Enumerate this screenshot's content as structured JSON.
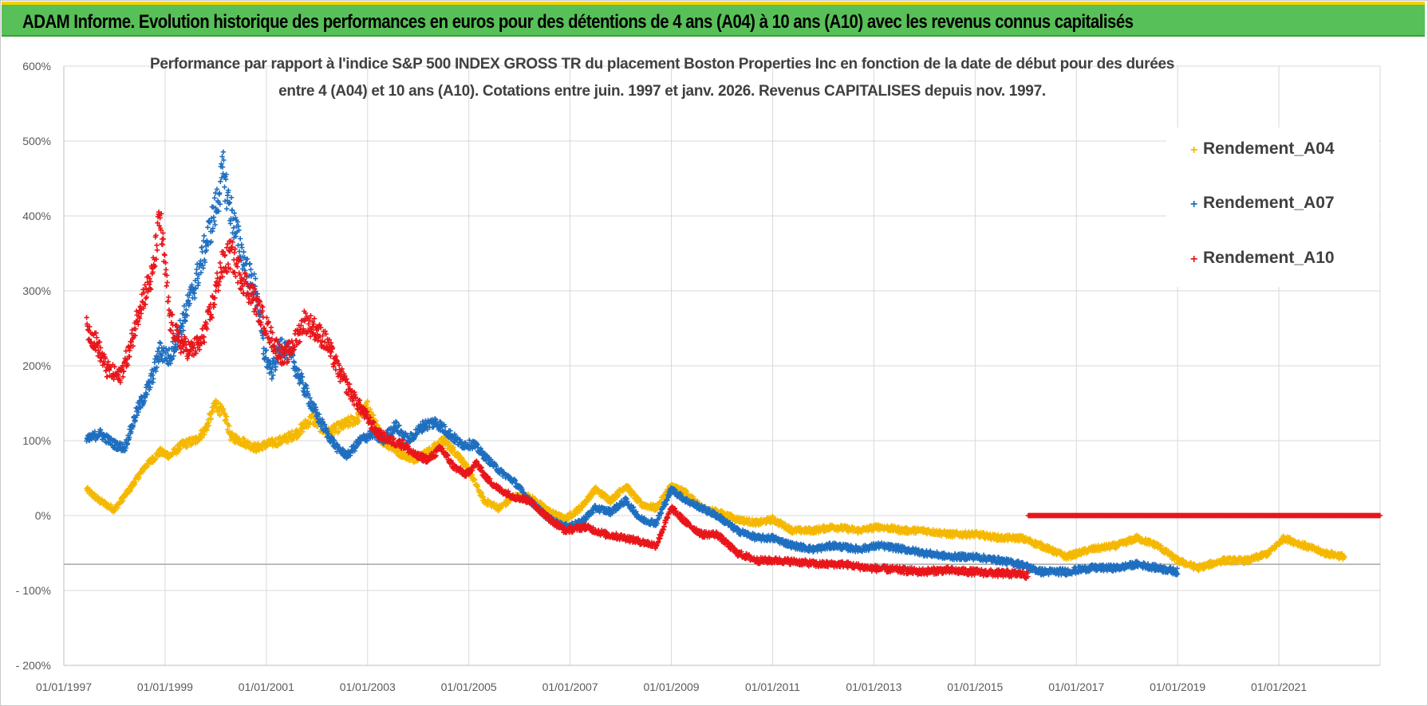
{
  "header": {
    "banner_title": "ADAM Informe. Evolution historique des performances en euros pour des détentions de 4 ans (A04) à 10 ans (A10) avec les revenus connus capitalisés"
  },
  "chart_data": {
    "type": "scatter",
    "title_line1": "Performance par rapport à l'indice S&P 500 INDEX GROSS TR  du placement Boston Properties Inc en fonction de la date de début pour des durées",
    "title_line2": "entre 4 (A04) et 10 ans (A10). Cotations entre juin. 1997 et janv. 2026. Revenus CAPITALISES depuis nov. 1997.",
    "xlabel": "",
    "ylabel": "",
    "x_ticks": [
      "01/01/1997",
      "01/01/1999",
      "01/01/2001",
      "01/01/2003",
      "01/01/2005",
      "01/01/2007",
      "01/01/2009",
      "01/01/2011",
      "01/01/2013",
      "01/01/2015",
      "01/01/2017",
      "01/01/2019",
      "01/01/2021"
    ],
    "y_ticks": [
      "600%",
      "500%",
      "400%",
      "300%",
      "200%",
      "100%",
      "0%",
      "- 100%",
      "- 200%"
    ],
    "xlim": [
      1997.0,
      2023.0
    ],
    "ylim": [
      -200,
      600
    ],
    "grid": true,
    "reference_line_y": -65,
    "legend_position": "top-right",
    "marker": "+",
    "series": [
      {
        "name": "Rendement_A04",
        "color": "#F5B800",
        "points": [
          [
            1997.45,
            35
          ],
          [
            1997.7,
            20
          ],
          [
            1998.0,
            8
          ],
          [
            1998.3,
            35
          ],
          [
            1998.6,
            65
          ],
          [
            1998.9,
            85
          ],
          [
            1999.1,
            80
          ],
          [
            1999.35,
            95
          ],
          [
            1999.6,
            100
          ],
          [
            1999.8,
            115
          ],
          [
            2000.0,
            150
          ],
          [
            2000.2,
            130
          ],
          [
            2000.3,
            105
          ],
          [
            2000.5,
            100
          ],
          [
            2000.8,
            90
          ],
          [
            2001.0,
            95
          ],
          [
            2001.3,
            100
          ],
          [
            2001.6,
            110
          ],
          [
            2001.9,
            130
          ],
          [
            2002.2,
            110
          ],
          [
            2002.5,
            120
          ],
          [
            2002.8,
            130
          ],
          [
            2003.0,
            145
          ],
          [
            2003.3,
            100
          ],
          [
            2003.6,
            85
          ],
          [
            2003.9,
            75
          ],
          [
            2004.2,
            85
          ],
          [
            2004.5,
            100
          ],
          [
            2004.8,
            80
          ],
          [
            2005.0,
            60
          ],
          [
            2005.3,
            20
          ],
          [
            2005.6,
            10
          ],
          [
            2005.9,
            25
          ],
          [
            2006.2,
            25
          ],
          [
            2006.6,
            5
          ],
          [
            2006.9,
            -5
          ],
          [
            2007.2,
            10
          ],
          [
            2007.5,
            35
          ],
          [
            2007.8,
            20
          ],
          [
            2008.1,
            40
          ],
          [
            2008.4,
            15
          ],
          [
            2008.7,
            10
          ],
          [
            2009.0,
            40
          ],
          [
            2009.3,
            30
          ],
          [
            2009.6,
            10
          ],
          [
            2009.9,
            5
          ],
          [
            2010.3,
            -5
          ],
          [
            2010.7,
            -10
          ],
          [
            2011.0,
            -5
          ],
          [
            2011.4,
            -20
          ],
          [
            2011.8,
            -20
          ],
          [
            2012.2,
            -15
          ],
          [
            2012.7,
            -20
          ],
          [
            2013.1,
            -15
          ],
          [
            2013.6,
            -20
          ],
          [
            2014.0,
            -20
          ],
          [
            2014.5,
            -25
          ],
          [
            2015.0,
            -25
          ],
          [
            2015.5,
            -30
          ],
          [
            2015.9,
            -30
          ],
          [
            2016.3,
            -40
          ],
          [
            2016.8,
            -55
          ],
          [
            2017.3,
            -45
          ],
          [
            2017.8,
            -40
          ],
          [
            2018.2,
            -30
          ],
          [
            2018.6,
            -40
          ],
          [
            2019.0,
            -60
          ],
          [
            2019.4,
            -70
          ],
          [
            2019.9,
            -60
          ],
          [
            2020.4,
            -60
          ],
          [
            2020.8,
            -50
          ],
          [
            2021.1,
            -30
          ],
          [
            2021.5,
            -40
          ],
          [
            2021.9,
            -50
          ],
          [
            2022.3,
            -55
          ]
        ]
      },
      {
        "name": "Rendement_A07",
        "color": "#1F6FC0",
        "points": [
          [
            1997.45,
            100
          ],
          [
            1997.7,
            110
          ],
          [
            1998.0,
            95
          ],
          [
            1998.2,
            90
          ],
          [
            1998.45,
            140
          ],
          [
            1998.7,
            175
          ],
          [
            1998.9,
            220
          ],
          [
            1999.1,
            210
          ],
          [
            1999.35,
            260
          ],
          [
            1999.6,
            310
          ],
          [
            1999.8,
            360
          ],
          [
            2000.0,
            410
          ],
          [
            2000.15,
            460
          ],
          [
            2000.25,
            420
          ],
          [
            2000.4,
            380
          ],
          [
            2000.6,
            330
          ],
          [
            2000.8,
            300
          ],
          [
            2000.95,
            220
          ],
          [
            2001.1,
            190
          ],
          [
            2001.3,
            230
          ],
          [
            2001.5,
            210
          ],
          [
            2001.75,
            170
          ],
          [
            2001.95,
            140
          ],
          [
            2002.2,
            110
          ],
          [
            2002.4,
            90
          ],
          [
            2002.6,
            80
          ],
          [
            2002.85,
            100
          ],
          [
            2003.1,
            110
          ],
          [
            2003.3,
            100
          ],
          [
            2003.55,
            120
          ],
          [
            2003.8,
            100
          ],
          [
            2004.1,
            120
          ],
          [
            2004.35,
            125
          ],
          [
            2004.6,
            110
          ],
          [
            2004.85,
            95
          ],
          [
            2005.1,
            95
          ],
          [
            2005.3,
            80
          ],
          [
            2005.6,
            60
          ],
          [
            2005.9,
            45
          ],
          [
            2006.2,
            20
          ],
          [
            2006.6,
            -5
          ],
          [
            2006.9,
            -15
          ],
          [
            2007.2,
            -10
          ],
          [
            2007.5,
            10
          ],
          [
            2007.8,
            5
          ],
          [
            2008.1,
            20
          ],
          [
            2008.4,
            -5
          ],
          [
            2008.7,
            -10
          ],
          [
            2009.0,
            35
          ],
          [
            2009.3,
            20
          ],
          [
            2009.6,
            10
          ],
          [
            2009.9,
            0
          ],
          [
            2010.3,
            -20
          ],
          [
            2010.7,
            -30
          ],
          [
            2011.0,
            -30
          ],
          [
            2011.4,
            -40
          ],
          [
            2011.8,
            -45
          ],
          [
            2012.2,
            -40
          ],
          [
            2012.7,
            -45
          ],
          [
            2013.1,
            -40
          ],
          [
            2013.6,
            -45
          ],
          [
            2014.0,
            -50
          ],
          [
            2014.5,
            -55
          ],
          [
            2015.0,
            -55
          ],
          [
            2015.5,
            -60
          ],
          [
            2015.9,
            -65
          ],
          [
            2016.3,
            -75
          ],
          [
            2016.8,
            -75
          ],
          [
            2017.3,
            -70
          ],
          [
            2017.8,
            -70
          ],
          [
            2018.2,
            -65
          ],
          [
            2018.6,
            -70
          ],
          [
            2019.0,
            -75
          ]
        ]
      },
      {
        "name": "Rendement_A10",
        "color": "#E8161B",
        "points": [
          [
            1997.45,
            250
          ],
          [
            1997.65,
            230
          ],
          [
            1997.85,
            195
          ],
          [
            1998.1,
            185
          ],
          [
            1998.3,
            220
          ],
          [
            1998.5,
            280
          ],
          [
            1998.75,
            320
          ],
          [
            1998.9,
            400
          ],
          [
            1999.1,
            260
          ],
          [
            1999.3,
            230
          ],
          [
            1999.5,
            220
          ],
          [
            1999.7,
            230
          ],
          [
            1999.9,
            270
          ],
          [
            2000.1,
            330
          ],
          [
            2000.3,
            350
          ],
          [
            2000.5,
            320
          ],
          [
            2000.75,
            290
          ],
          [
            2000.95,
            260
          ],
          [
            2001.15,
            230
          ],
          [
            2001.35,
            210
          ],
          [
            2001.55,
            230
          ],
          [
            2001.75,
            260
          ],
          [
            2001.95,
            250
          ],
          [
            2002.2,
            230
          ],
          [
            2002.45,
            190
          ],
          [
            2002.7,
            160
          ],
          [
            2002.95,
            135
          ],
          [
            2003.2,
            110
          ],
          [
            2003.45,
            100
          ],
          [
            2003.7,
            95
          ],
          [
            2003.95,
            80
          ],
          [
            2004.2,
            75
          ],
          [
            2004.45,
            90
          ],
          [
            2004.7,
            65
          ],
          [
            2004.95,
            55
          ],
          [
            2005.15,
            70
          ],
          [
            2005.35,
            50
          ],
          [
            2005.6,
            35
          ],
          [
            2005.9,
            25
          ],
          [
            2006.2,
            20
          ],
          [
            2006.6,
            -5
          ],
          [
            2006.9,
            -20
          ],
          [
            2007.3,
            -15
          ],
          [
            2007.7,
            -25
          ],
          [
            2008.1,
            -30
          ],
          [
            2008.4,
            -35
          ],
          [
            2008.7,
            -40
          ],
          [
            2009.0,
            10
          ],
          [
            2009.3,
            -10
          ],
          [
            2009.6,
            -25
          ],
          [
            2009.9,
            -25
          ],
          [
            2010.3,
            -50
          ],
          [
            2010.7,
            -60
          ],
          [
            2011.1,
            -60
          ],
          [
            2011.5,
            -62
          ],
          [
            2011.9,
            -65
          ],
          [
            2012.4,
            -65
          ],
          [
            2012.9,
            -70
          ],
          [
            2013.4,
            -72
          ],
          [
            2013.9,
            -75
          ],
          [
            2014.4,
            -73
          ],
          [
            2014.9,
            -75
          ],
          [
            2015.4,
            -77
          ],
          [
            2015.9,
            -78
          ],
          [
            2016.05,
            -80
          ]
        ]
      },
      {
        "name": "",
        "color": "#E8161B",
        "points": [
          [
            2016.05,
            0
          ],
          [
            2023.0,
            0
          ]
        ]
      }
    ]
  }
}
